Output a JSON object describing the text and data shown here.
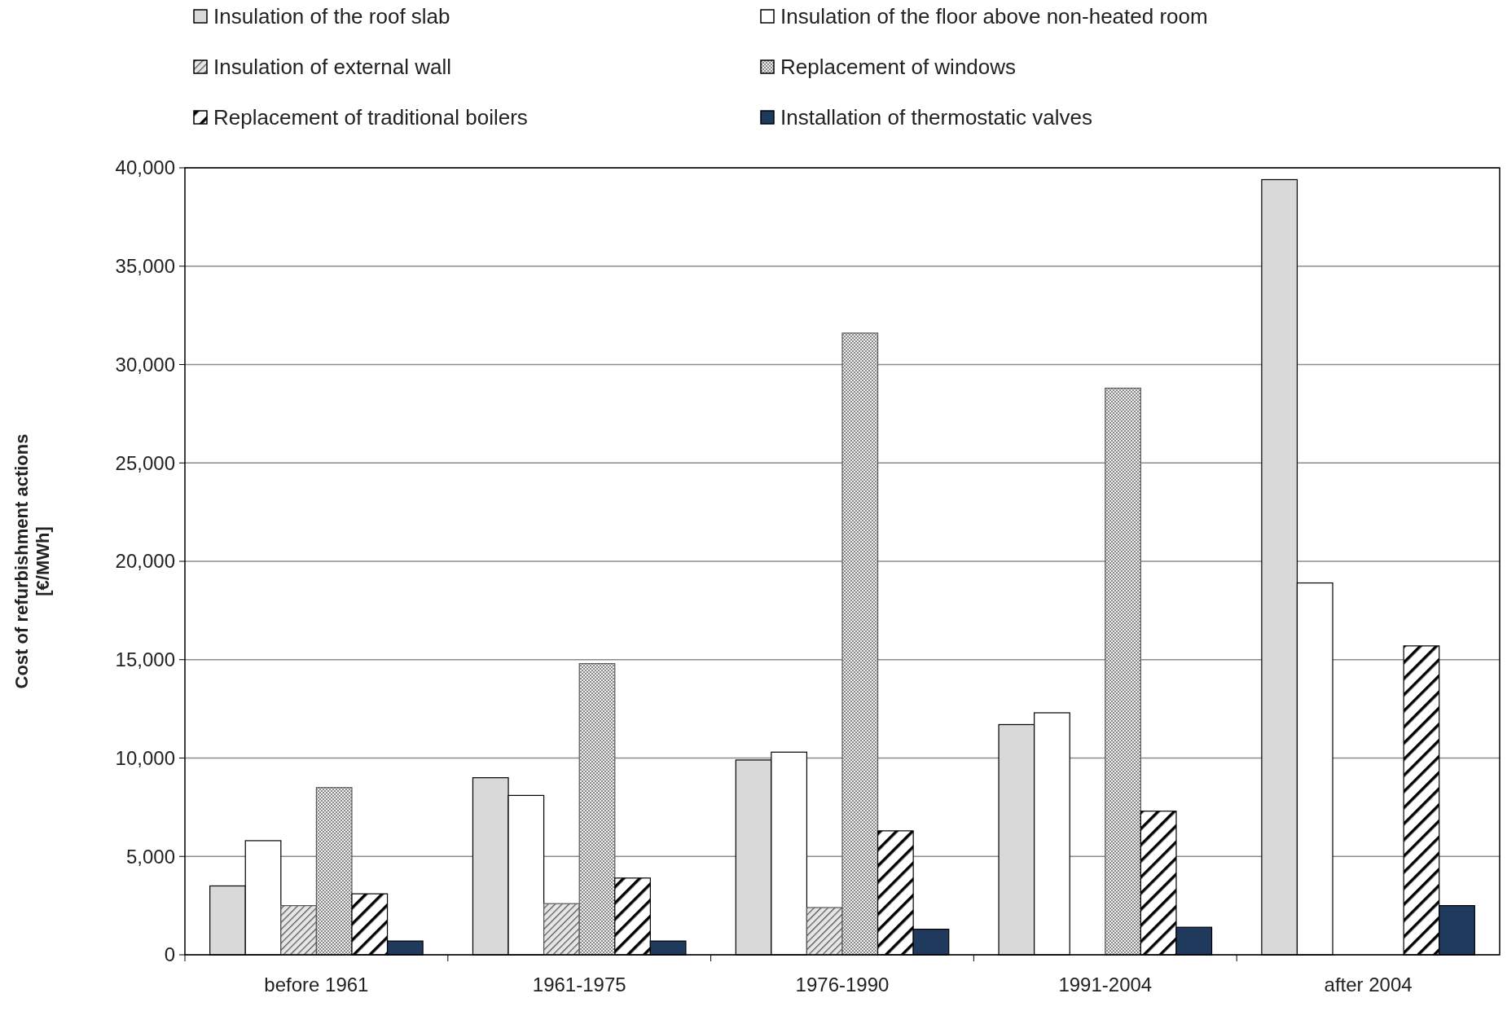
{
  "chart_data": {
    "type": "bar",
    "ylabel": "Cost of refurbishment actions\n[€/MWh]",
    "categories": [
      "before 1961",
      "1961-1975",
      "1976-1990",
      "1991-2004",
      "after 2004"
    ],
    "series": [
      {
        "name": "Insulation of the roof slab",
        "color": "#d9d9d9",
        "values": [
          3500,
          9000,
          9900,
          11700,
          39400
        ]
      },
      {
        "name": "Insulation of the floor above non-heated room",
        "color": "#ffffff",
        "values": [
          5800,
          8100,
          10300,
          12300,
          18900
        ]
      },
      {
        "name": "Insulation of external wall",
        "color": "#555555",
        "values": [
          2500,
          2600,
          2400,
          null,
          null
        ]
      },
      {
        "name": "Replacement of windows",
        "color": "#595959",
        "values": [
          8500,
          14800,
          31600,
          28800,
          null
        ]
      },
      {
        "name": "Replacement of traditional boilers",
        "color": "#000000",
        "values": [
          3100,
          3900,
          6300,
          7300,
          15700
        ]
      },
      {
        "name": "Installation of thermostatic valves",
        "color": "#1f3a5c",
        "values": [
          700,
          700,
          1300,
          1400,
          2500
        ]
      }
    ],
    "ylim": [
      0,
      40000
    ],
    "yticks": [
      {
        "value": 0,
        "label": "0"
      },
      {
        "value": 5000,
        "label": "5,000"
      },
      {
        "value": 10000,
        "label": "10,000"
      },
      {
        "value": 15000,
        "label": "15,000"
      },
      {
        "value": 20000,
        "label": "20,000"
      },
      {
        "value": 25000,
        "label": "25,000"
      },
      {
        "value": 30000,
        "label": "30,000"
      },
      {
        "value": 35000,
        "label": "35,000"
      },
      {
        "value": 40000,
        "label": "40,000"
      }
    ],
    "grid": "y",
    "legend": "top"
  }
}
